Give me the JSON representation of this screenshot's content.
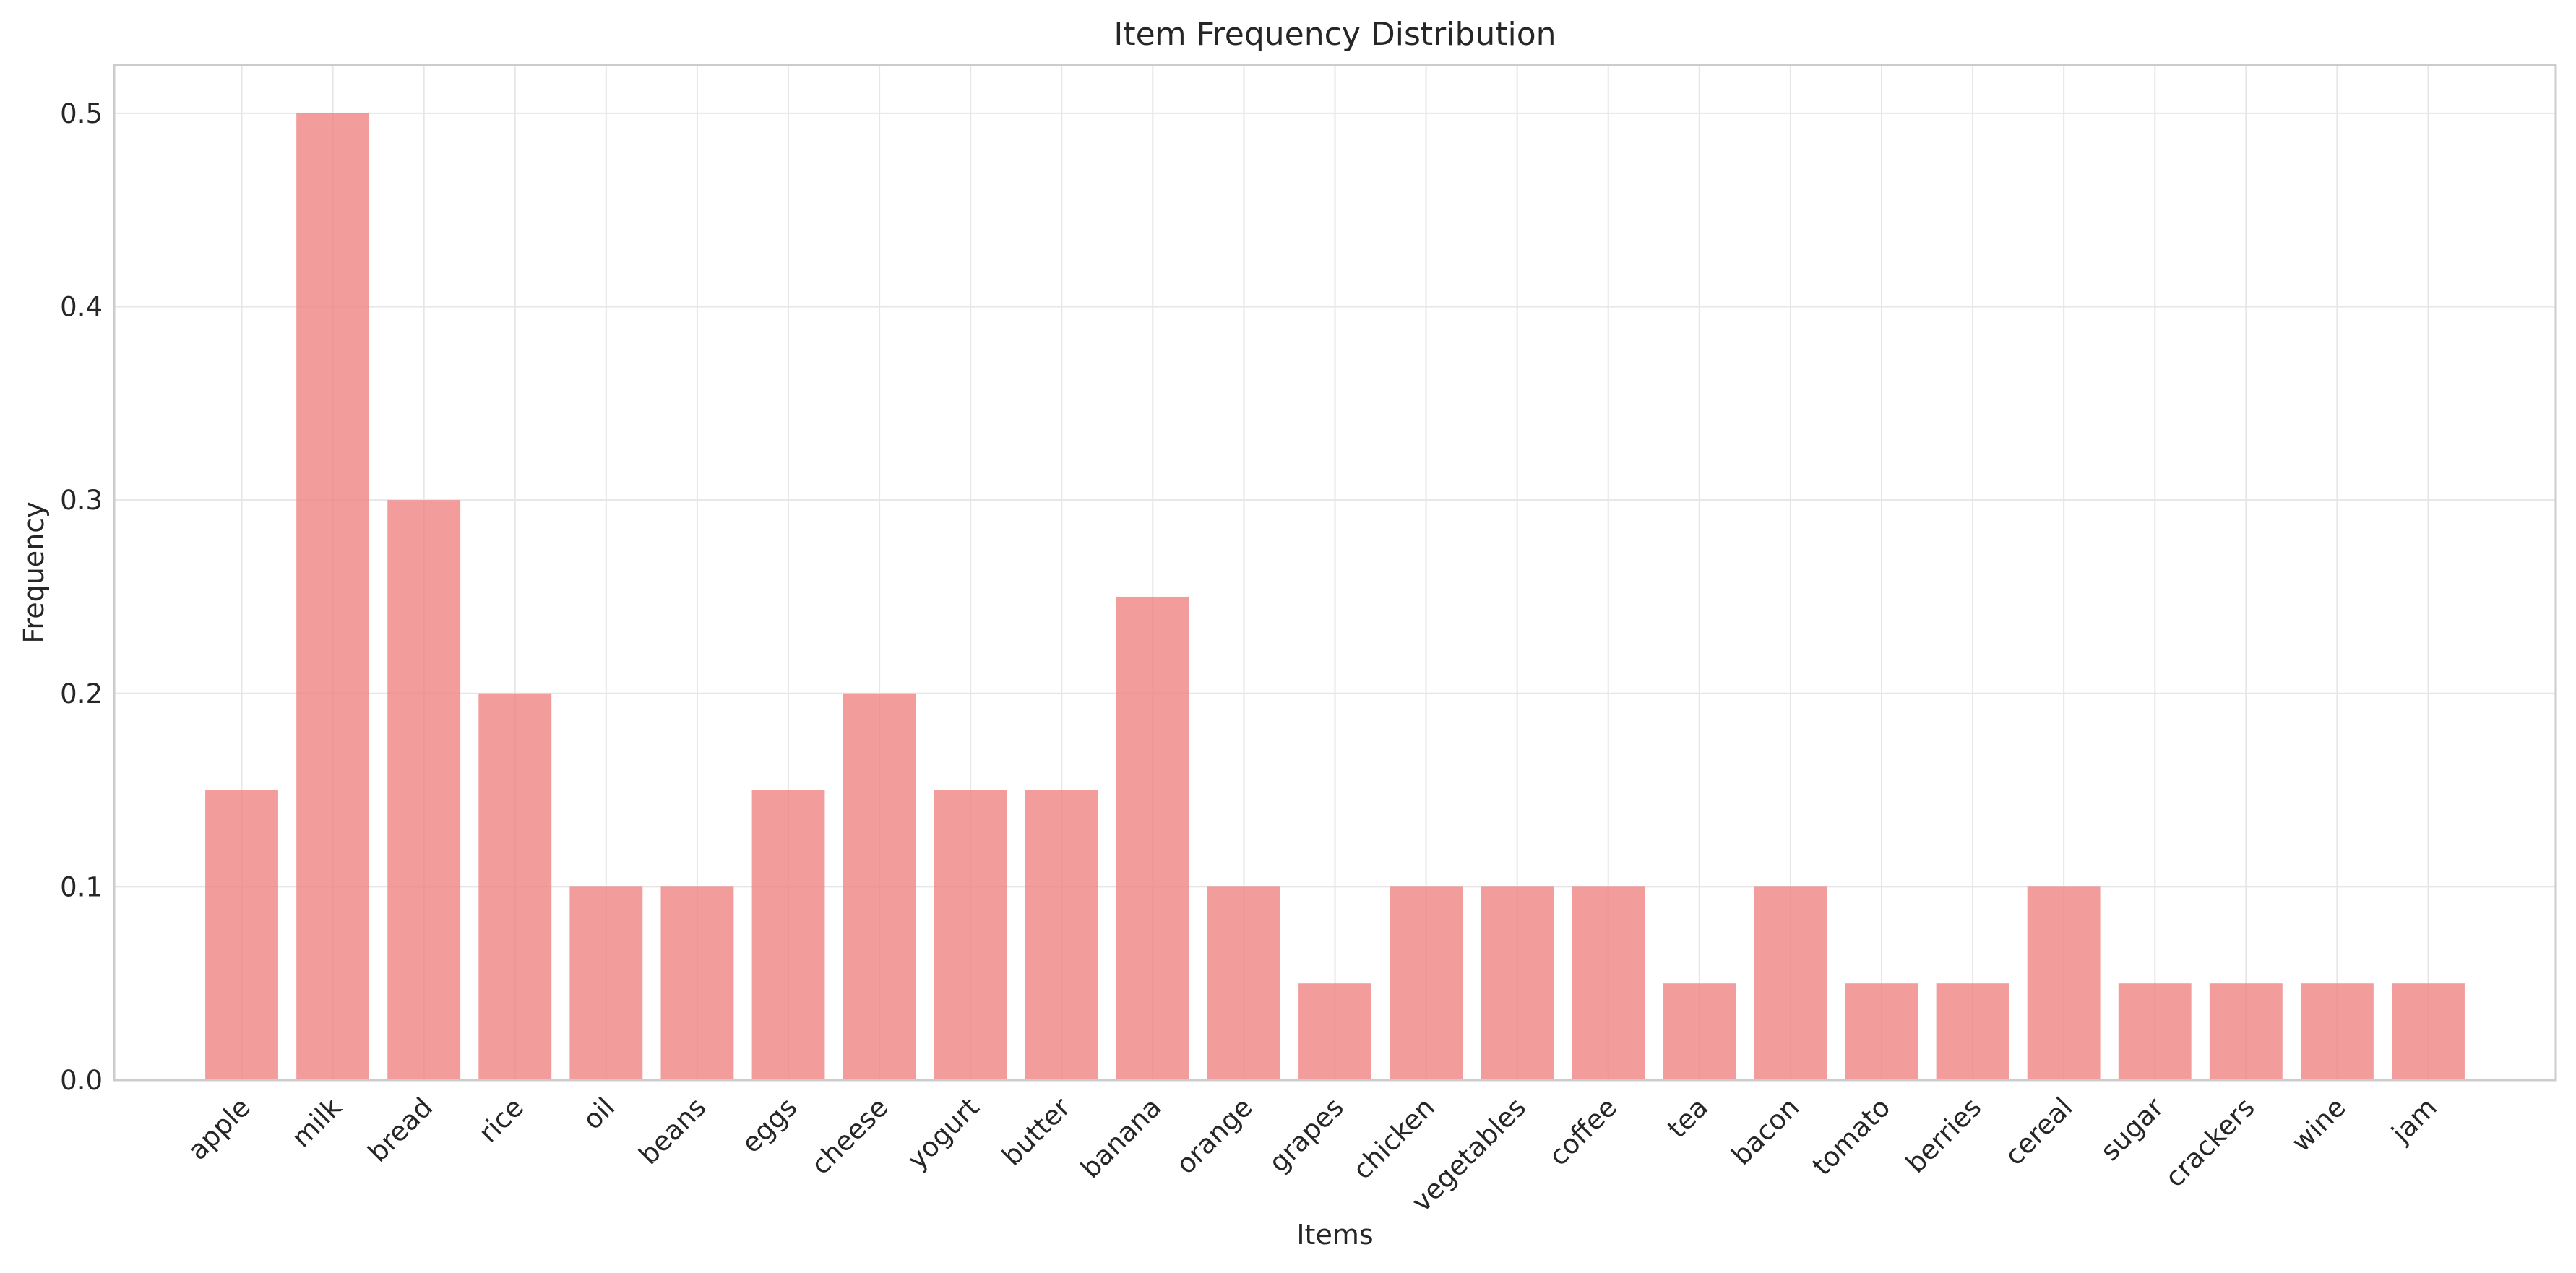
{
  "chart_data": {
    "type": "bar",
    "title": "Item Frequency Distribution",
    "xlabel": "Items",
    "ylabel": "Frequency",
    "categories": [
      "apple",
      "milk",
      "bread",
      "rice",
      "oil",
      "beans",
      "eggs",
      "cheese",
      "yogurt",
      "butter",
      "banana",
      "orange",
      "grapes",
      "chicken",
      "vegetables",
      "coffee",
      "tea",
      "bacon",
      "tomato",
      "berries",
      "cereal",
      "sugar",
      "crackers",
      "wine",
      "jam"
    ],
    "values": [
      0.15,
      0.5,
      0.3,
      0.2,
      0.1,
      0.1,
      0.15,
      0.2,
      0.15,
      0.15,
      0.25,
      0.1,
      0.05,
      0.1,
      0.1,
      0.1,
      0.05,
      0.1,
      0.05,
      0.05,
      0.1,
      0.05,
      0.05,
      0.05,
      0.05
    ],
    "ylim": [
      0,
      0.525
    ],
    "yticks": [
      0.0,
      0.1,
      0.2,
      0.3,
      0.4,
      0.5
    ],
    "ytick_labels": [
      "0.0",
      "0.1",
      "0.2",
      "0.3",
      "0.4",
      "0.5"
    ],
    "grid": true,
    "bar_color": "#f08080"
  }
}
